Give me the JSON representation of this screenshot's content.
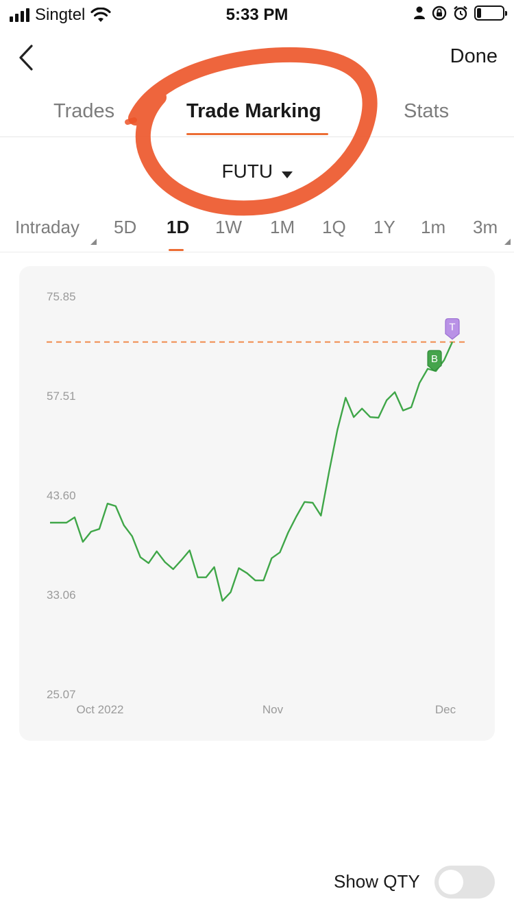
{
  "status_bar": {
    "carrier": "Singtel",
    "time": "5:33 PM",
    "battery_level": 0.18
  },
  "nav": {
    "back_icon": "chevron-left-icon",
    "done_label": "Done"
  },
  "tabs": [
    {
      "label": "Trades",
      "active": false
    },
    {
      "label": "Trade Marking",
      "active": true
    },
    {
      "label": "Stats",
      "active": false
    }
  ],
  "ticker": {
    "symbol": "FUTU",
    "dropdown_icon": "caret-down-icon"
  },
  "periods": [
    {
      "label": "Intraday",
      "active": false,
      "has_submenu": true
    },
    {
      "label": "5D",
      "active": false
    },
    {
      "label": "1D",
      "active": true
    },
    {
      "label": "1W",
      "active": false
    },
    {
      "label": "1M",
      "active": false
    },
    {
      "label": "1Q",
      "active": false
    },
    {
      "label": "1Y",
      "active": false
    },
    {
      "label": "1m",
      "active": false
    },
    {
      "label": "3m",
      "active": false,
      "has_submenu": true
    }
  ],
  "chart_data": {
    "type": "line",
    "y_ticks": [
      "75.85",
      "57.51",
      "43.60",
      "33.06",
      "25.07"
    ],
    "x_ticks": [
      "Oct 2022",
      "Nov",
      "Dec"
    ],
    "ylim": [
      25.07,
      75.85
    ],
    "y_scale": "log",
    "series": [
      {
        "color": "#3fa648",
        "values": [
          40.4,
          40.4,
          40.4,
          41.0,
          38.3,
          39.4,
          39.7,
          42.6,
          42.3,
          40.1,
          38.9,
          36.7,
          36.1,
          37.3,
          36.2,
          35.5,
          36.4,
          37.4,
          34.7,
          34.7,
          35.7,
          32.5,
          33.3,
          35.6,
          35.1,
          34.4,
          34.4,
          36.6,
          37.2,
          39.3,
          41.1,
          42.8,
          42.7,
          41.2,
          46.6,
          52.3,
          57.2,
          54.2,
          55.5,
          54.2,
          54.1,
          56.8,
          58.1,
          55.2,
          55.7,
          59.6,
          62.0,
          61.6,
          63.5,
          66.8
        ]
      }
    ],
    "reference_line": {
      "value": 66.8,
      "color": "#f08a4b",
      "style": "dashed"
    },
    "markers": [
      {
        "label": "T",
        "index": 49,
        "color": "#b992e6"
      },
      {
        "label": "B",
        "index": 47,
        "color": "#45a44c"
      }
    ],
    "grid": false
  },
  "footer": {
    "show_qty_label": "Show QTY",
    "show_qty_on": false
  }
}
